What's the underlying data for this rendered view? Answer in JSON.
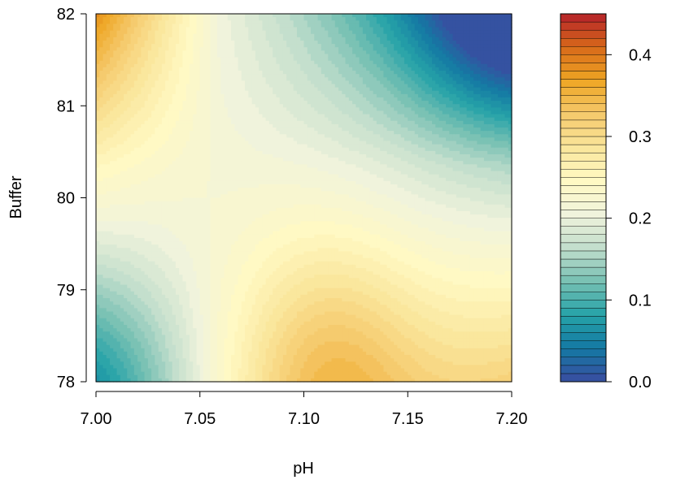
{
  "chart_data": {
    "type": "heatmap",
    "title": "",
    "xlabel": "pH",
    "ylabel": "Buffer",
    "xlim": [
      7.0,
      7.2
    ],
    "ylim": [
      78,
      82
    ],
    "x_ticks": [
      "7.00",
      "7.05",
      "7.10",
      "7.15",
      "7.20"
    ],
    "y_ticks": [
      "78",
      "79",
      "80",
      "81",
      "82"
    ],
    "colorbar": {
      "range": [
        0.0,
        0.45
      ],
      "ticks": [
        "0.0",
        "0.1",
        "0.2",
        "0.3",
        "0.4"
      ],
      "levels": 45,
      "palette": [
        "#3A4DA1",
        "#1479A3",
        "#26A3A8",
        "#77C0B3",
        "#C2DECC",
        "#F0F3DC",
        "#FFF9C4",
        "#FAE69C",
        "#F5C96B",
        "#EEA624",
        "#D86A1A",
        "#B5212A"
      ]
    },
    "surface": {
      "x_center": 7.06,
      "y_center": 80.35,
      "saddle_value": 0.215,
      "value_at_x_edges": [
        0.255,
        0.165
      ],
      "value_at_y_edges": [
        0.225,
        0.205
      ],
      "corners": {
        "x7.00_y78": 0.08,
        "x7.00_y82": 0.33,
        "x7.11_y78": 0.34,
        "x7.20_y82": 0.02,
        "x7.20_y78": 0.2
      }
    }
  }
}
